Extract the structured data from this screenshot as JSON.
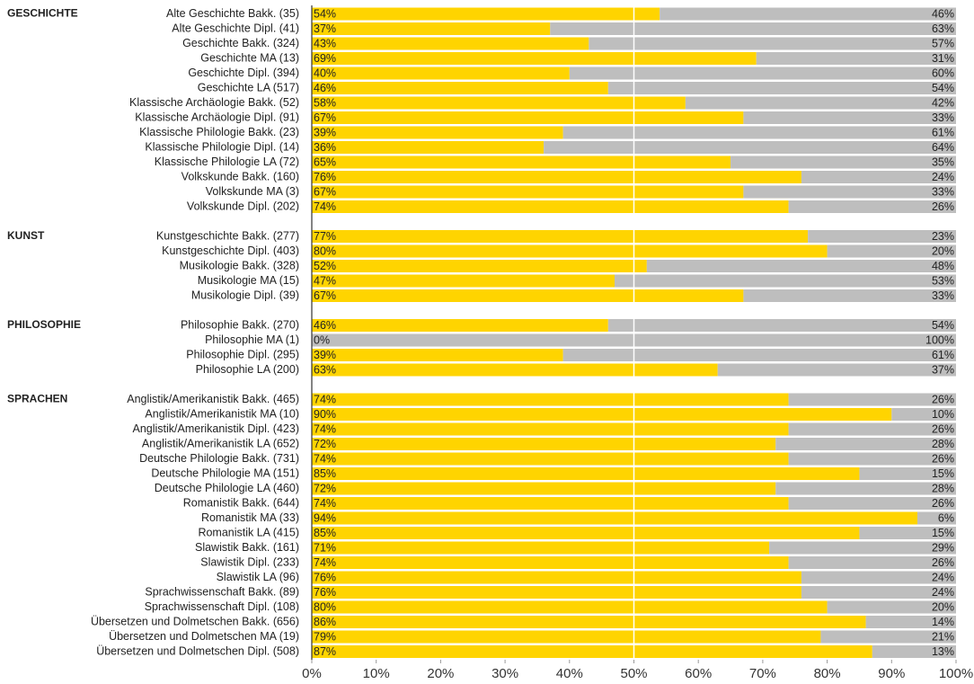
{
  "chart_data": {
    "type": "stacked_bar",
    "xlim": [
      0,
      100
    ],
    "xticks": [
      {
        "value": 0,
        "label": "0%"
      },
      {
        "value": 10,
        "label": "10%"
      },
      {
        "value": 20,
        "label": "20%"
      },
      {
        "value": 30,
        "label": "30%"
      },
      {
        "value": 40,
        "label": "40%"
      },
      {
        "value": 50,
        "label": "50%"
      },
      {
        "value": 60,
        "label": "60%"
      },
      {
        "value": 70,
        "label": "70%"
      },
      {
        "value": 80,
        "label": "80%"
      },
      {
        "value": 90,
        "label": "90%"
      },
      {
        "value": 100,
        "label": "100%"
      }
    ],
    "grid_lines": [
      50
    ],
    "groups": [
      {
        "label": "GESCHICHTE",
        "categories": [
          "Alte Geschichte Bakk. (35)",
          "Alte Geschichte Dipl. (41)",
          "Geschichte Bakk. (324)",
          "Geschichte MA (13)",
          "Geschichte Dipl. (394)",
          "Geschichte LA (517)",
          "Klassische Archäologie Bakk. (52)",
          "Klassische Archäologie Dipl. (91)",
          "Klassische Philologie Bakk. (23)",
          "Klassische Philologie Dipl. (14)",
          "Klassische Philologie LA (72)",
          "Volkskunde Bakk. (160)",
          "Volkskunde MA (3)",
          "Volkskunde Dipl. (202)"
        ],
        "series": [
          {
            "color": "#ffd400",
            "values": [
              54,
              37,
              43,
              69,
              40,
              46,
              58,
              67,
              39,
              36,
              65,
              76,
              67,
              74
            ],
            "value_labels": [
              "54%",
              "37%",
              "43%",
              "69%",
              "40%",
              "46%",
              "58%",
              "67%",
              "39%",
              "36%",
              "65%",
              "76%",
              "67%",
              "74%"
            ]
          },
          {
            "color": "#bebebe",
            "values": [
              46,
              63,
              57,
              31,
              60,
              54,
              42,
              33,
              61,
              64,
              35,
              24,
              33,
              26
            ],
            "value_labels": [
              "46%",
              "63%",
              "57%",
              "31%",
              "60%",
              "54%",
              "42%",
              "33%",
              "61%",
              "64%",
              "35%",
              "24%",
              "33%",
              "26%"
            ]
          }
        ]
      },
      {
        "label": "KUNST",
        "categories": [
          "Kunstgeschichte Bakk. (277)",
          "Kunstgeschichte Dipl. (403)",
          "Musikologie Bakk. (328)",
          "Musikologie MA (15)",
          "Musikologie Dipl. (39)"
        ],
        "series": [
          {
            "color": "#ffd400",
            "values": [
              77,
              80,
              52,
              47,
              67
            ],
            "value_labels": [
              "77%",
              "80%",
              "52%",
              "47%",
              "67%"
            ]
          },
          {
            "color": "#bebebe",
            "values": [
              23,
              20,
              48,
              53,
              33
            ],
            "value_labels": [
              "23%",
              "20%",
              "48%",
              "53%",
              "33%"
            ]
          }
        ]
      },
      {
        "label": "PHILOSOPHIE",
        "categories": [
          "Philosophie Bakk. (270)",
          "Philosophie MA (1)",
          "Philosophie Dipl. (295)",
          "Philosophie LA (200)"
        ],
        "series": [
          {
            "color": "#ffd400",
            "values": [
              46,
              0,
              39,
              63
            ],
            "value_labels": [
              "46%",
              "0%",
              "39%",
              "63%"
            ]
          },
          {
            "color": "#bebebe",
            "values": [
              54,
              100,
              61,
              37
            ],
            "value_labels": [
              "54%",
              "100%",
              "61%",
              "37%"
            ]
          }
        ]
      },
      {
        "label": "SPRACHEN",
        "categories": [
          "Anglistik/Amerikanistik Bakk. (465)",
          "Anglistik/Amerikanistik MA (10)",
          "Anglistik/Amerikanistik Dipl. (423)",
          "Anglistik/Amerikanistik LA (652)",
          "Deutsche Philologie Bakk. (731)",
          "Deutsche Philologie MA (151)",
          "Deutsche Philologie LA (460)",
          "Romanistik Bakk. (644)",
          "Romanistik MA (33)",
          "Romanistik LA (415)",
          "Slawistik Bakk. (161)",
          "Slawistik Dipl. (233)",
          "Slawistik LA (96)",
          "Sprachwissenschaft Bakk. (89)",
          "Sprachwissenschaft Dipl. (108)",
          "Übersetzen und Dolmetschen Bakk. (656)",
          "Übersetzen und Dolmetschen MA (19)",
          "Übersetzen und Dolmetschen Dipl. (508)"
        ],
        "series": [
          {
            "color": "#ffd400",
            "values": [
              74,
              90,
              74,
              72,
              74,
              85,
              72,
              74,
              94,
              85,
              71,
              74,
              76,
              76,
              80,
              86,
              79,
              87
            ],
            "value_labels": [
              "74%",
              "90%",
              "74%",
              "72%",
              "74%",
              "85%",
              "72%",
              "74%",
              "94%",
              "85%",
              "71%",
              "74%",
              "76%",
              "76%",
              "80%",
              "86%",
              "79%",
              "87%"
            ]
          },
          {
            "color": "#bebebe",
            "values": [
              26,
              10,
              26,
              28,
              26,
              15,
              28,
              26,
              6,
              15,
              29,
              26,
              24,
              24,
              20,
              14,
              21,
              13
            ],
            "value_labels": [
              "26%",
              "10%",
              "26%",
              "28%",
              "26%",
              "15%",
              "28%",
              "26%",
              "6%",
              "15%",
              "29%",
              "26%",
              "24%",
              "24%",
              "20%",
              "14%",
              "21%",
              "13%"
            ]
          }
        ]
      }
    ]
  }
}
